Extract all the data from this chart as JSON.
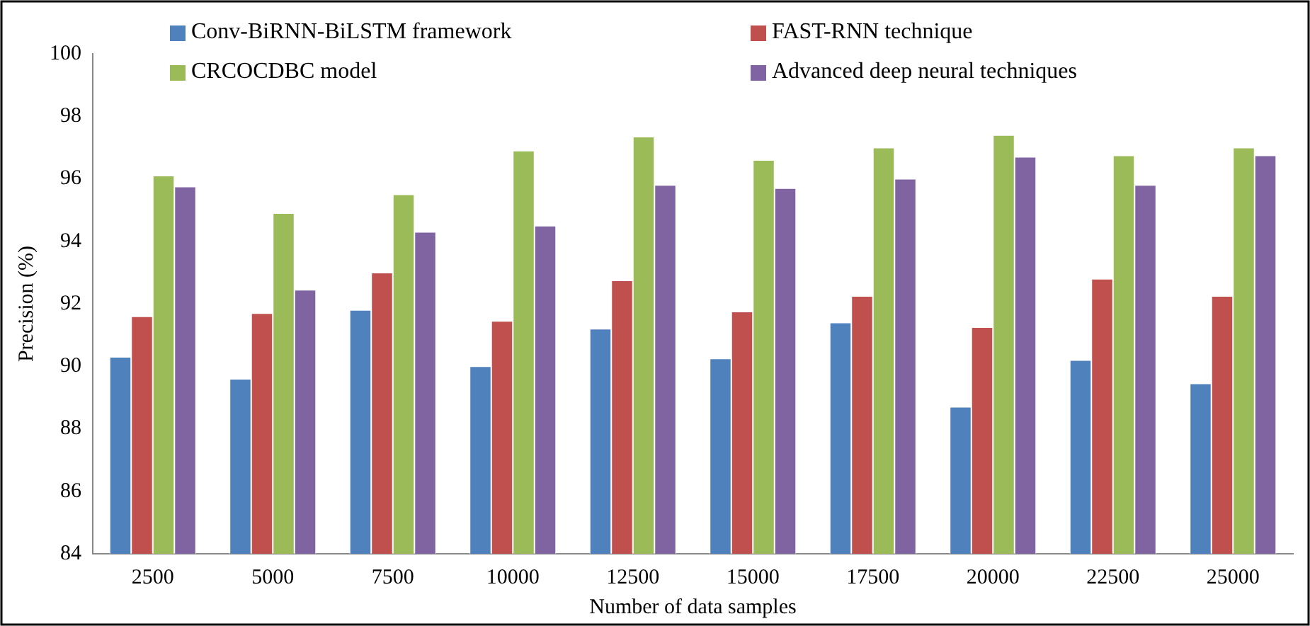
{
  "chart_data": {
    "type": "bar",
    "xlabel": "Number of data samples",
    "ylabel": "Precision (%)",
    "categories": [
      "2500",
      "5000",
      "7500",
      "10000",
      "12500",
      "15000",
      "17500",
      "20000",
      "22500",
      "25000"
    ],
    "series": [
      {
        "name": "Conv-BiRNN-BiLSTM framework",
        "color": "#4f81bd",
        "values": [
          90.3,
          89.6,
          91.8,
          90.0,
          91.2,
          90.25,
          91.4,
          88.7,
          90.2,
          89.45
        ]
      },
      {
        "name": "FAST-RNN technique",
        "color": "#c0504d",
        "values": [
          91.6,
          91.7,
          93.0,
          91.45,
          92.75,
          91.75,
          92.25,
          91.25,
          92.8,
          92.25
        ]
      },
      {
        "name": "CRCOCDBC model",
        "color": "#9bbb59",
        "values": [
          96.1,
          94.9,
          95.5,
          96.9,
          97.35,
          96.6,
          97.0,
          97.4,
          96.75,
          97.0
        ]
      },
      {
        "name": "Advanced deep neural techniques",
        "color": "#8064a2",
        "values": [
          95.75,
          92.45,
          94.3,
          94.5,
          95.8,
          95.7,
          96.0,
          96.7,
          95.8,
          96.75
        ]
      }
    ],
    "ylim": [
      84,
      100
    ],
    "yticks": [
      84,
      86,
      88,
      90,
      92,
      94,
      96,
      98,
      100
    ],
    "grid": false,
    "legend": "top"
  }
}
